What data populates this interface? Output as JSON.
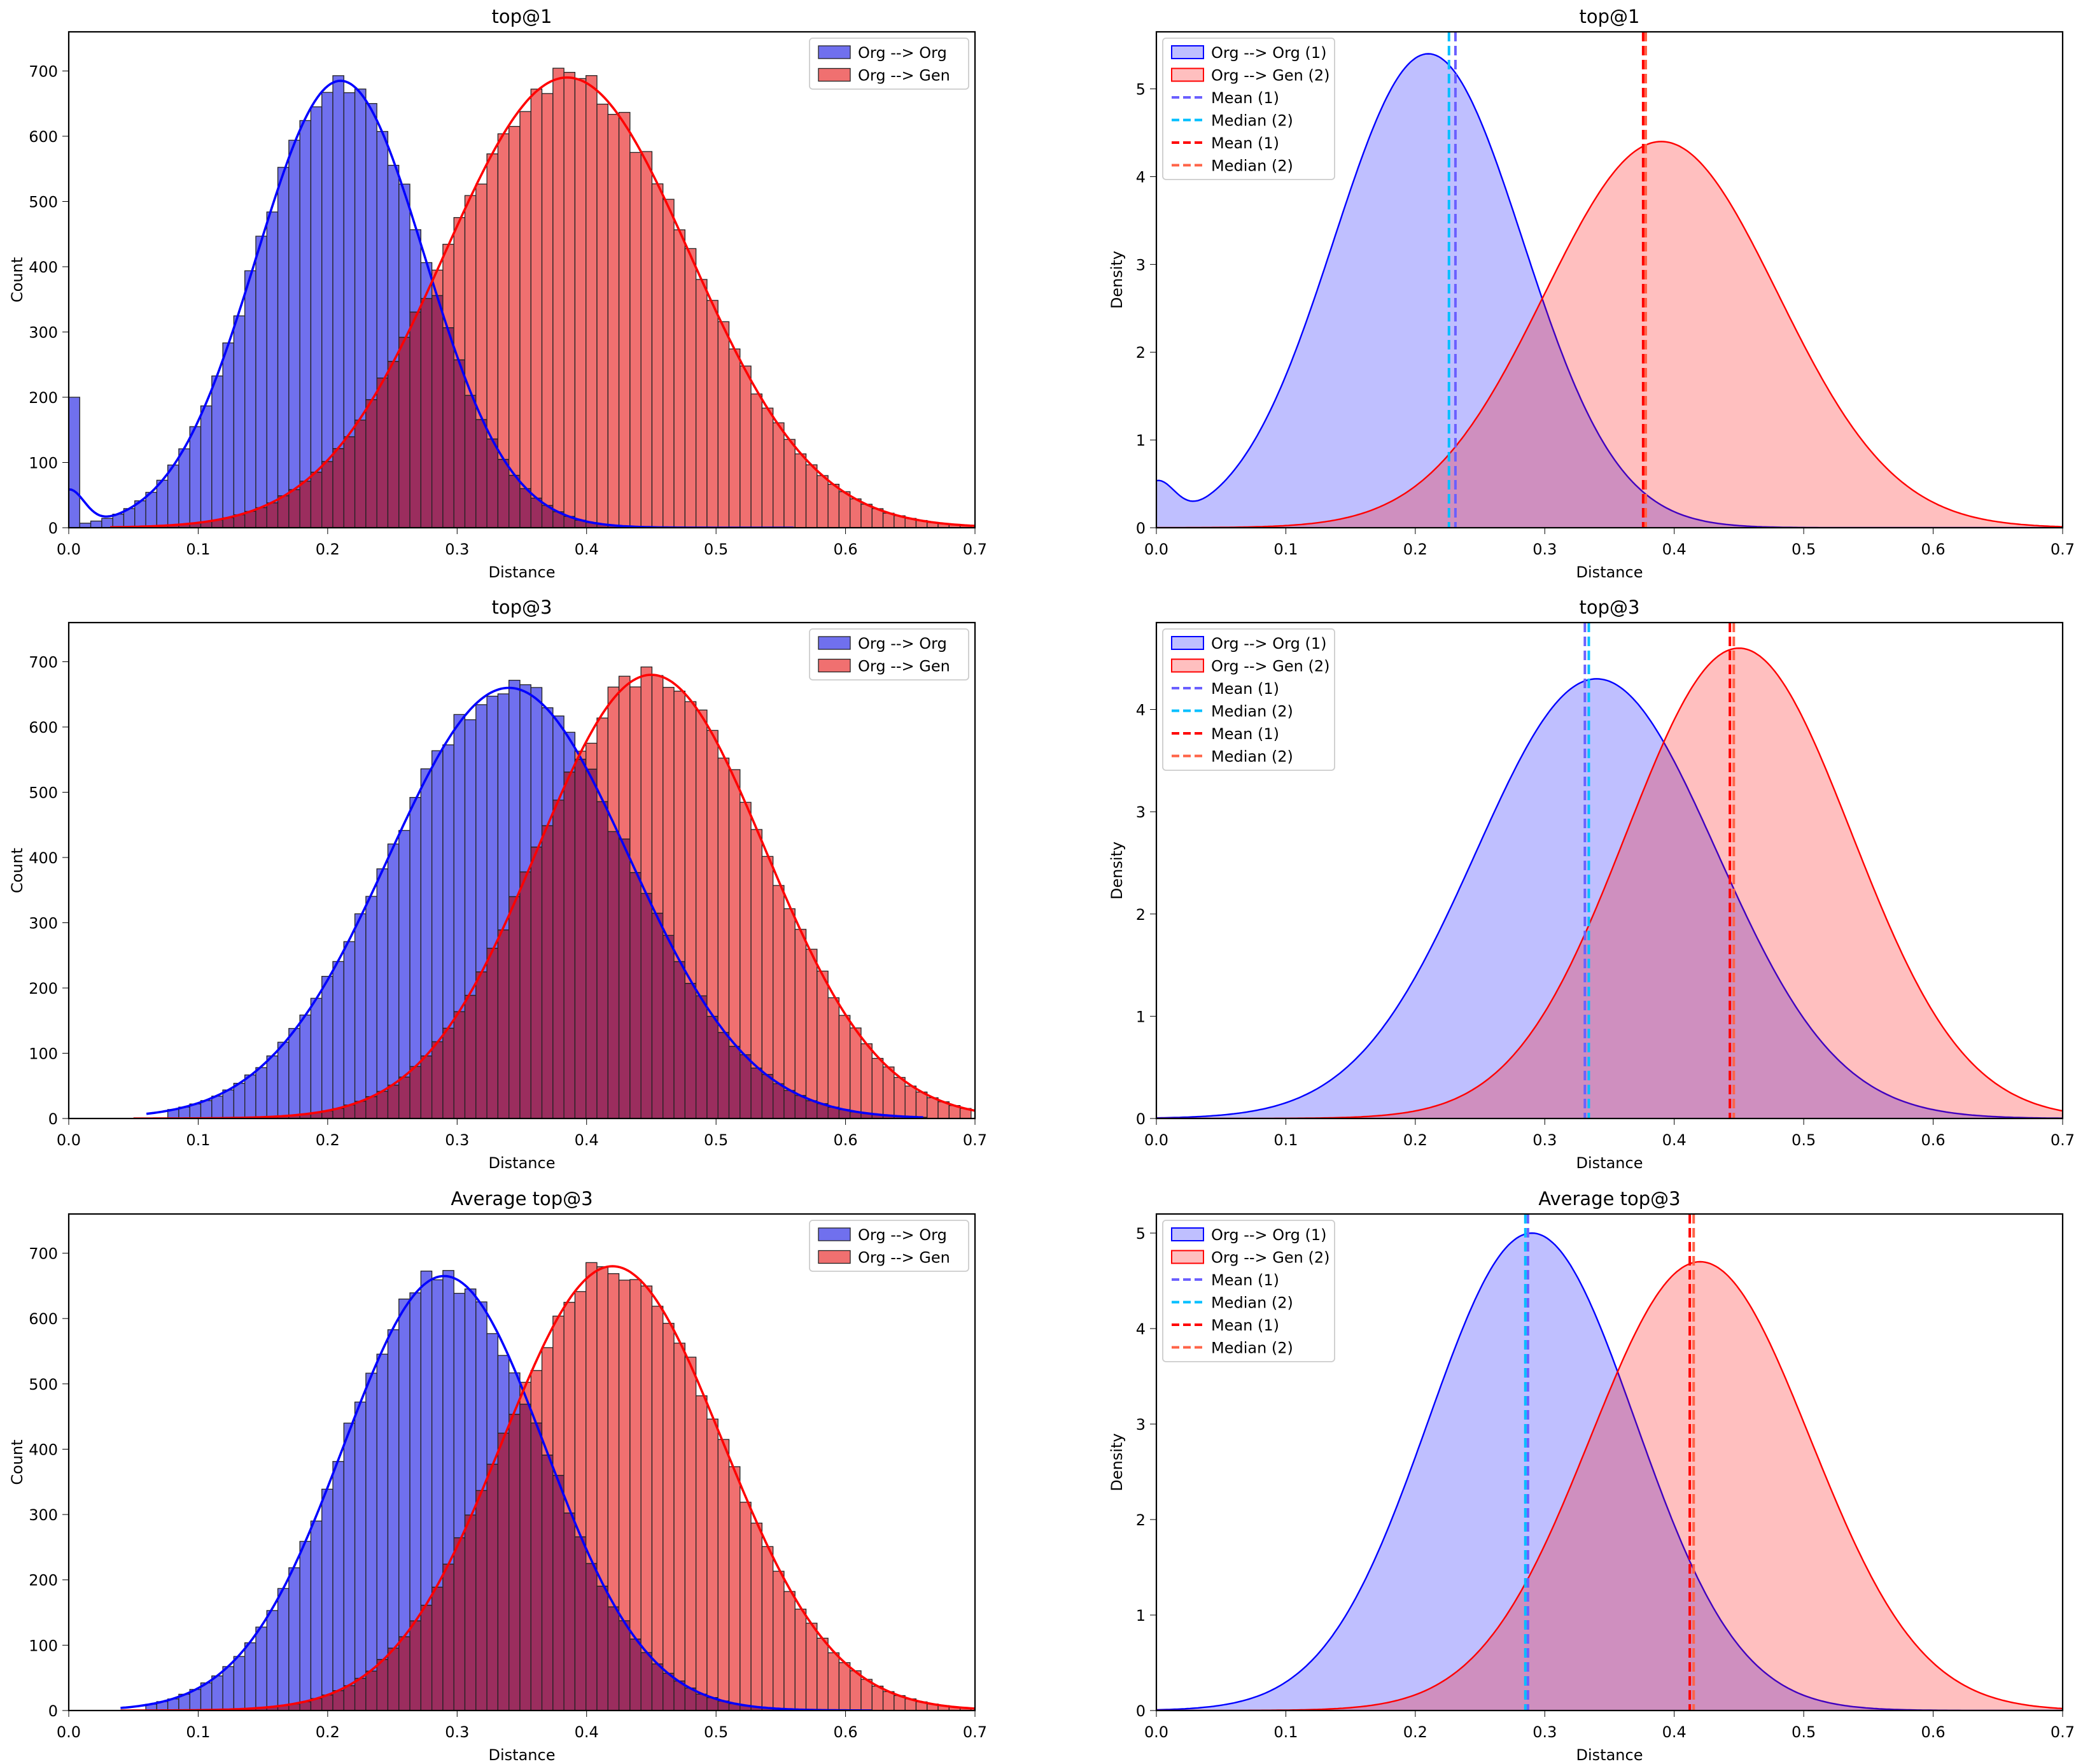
{
  "colors": {
    "blue": "#0000ff",
    "red": "#ff0000",
    "blue_bar": "#7070ee",
    "red_bar": "#f07070",
    "overlap": "#9b2d5e"
  },
  "chart_data": [
    {
      "id": "hist-top1",
      "type": "histogram",
      "title": "top@1",
      "xlabel": "Distance",
      "ylabel": "Count",
      "xlim": [
        0,
        0.7
      ],
      "ylim": [
        0,
        760
      ],
      "xticks": [
        "0.0",
        "0.1",
        "0.2",
        "0.3",
        "0.4",
        "0.5",
        "0.6",
        "0.7"
      ],
      "xtick_values": [
        0,
        0.1,
        0.2,
        0.3,
        0.4,
        0.5,
        0.6,
        0.7
      ],
      "yticks": [
        "0",
        "100",
        "200",
        "300",
        "400",
        "500",
        "600",
        "700"
      ],
      "ytick_values": [
        0,
        100,
        200,
        300,
        400,
        500,
        600,
        700
      ],
      "legend": [
        "Org --> Org",
        "Org --> Gen"
      ],
      "legend_position": "top-right",
      "series": [
        {
          "name": "Org --> Org",
          "color": "#0000ff",
          "mean": 0.21,
          "sd": 0.065,
          "peak": 685,
          "xmin": 0.0,
          "xmax": 0.56,
          "spike": 200
        },
        {
          "name": "Org --> Gen",
          "color": "#ff0000",
          "mean": 0.385,
          "sd": 0.095,
          "peak": 690,
          "xmin": 0.05,
          "xmax": 0.7
        }
      ]
    },
    {
      "id": "kde-top1",
      "type": "area",
      "title": "top@1",
      "xlabel": "Distance",
      "ylabel": "Density",
      "xlim": [
        0,
        0.7
      ],
      "ylim": [
        0,
        5.65
      ],
      "xticks": [
        "0.0",
        "0.1",
        "0.2",
        "0.3",
        "0.4",
        "0.5",
        "0.6",
        "0.7"
      ],
      "xtick_values": [
        0,
        0.1,
        0.2,
        0.3,
        0.4,
        0.5,
        0.6,
        0.7
      ],
      "yticks": [
        "0",
        "1",
        "2",
        "3",
        "4",
        "5"
      ],
      "ytick_values": [
        0,
        1,
        2,
        3,
        4,
        5
      ],
      "legend": [
        "Org --> Org (1)",
        "Org --> Gen (2)",
        "Mean (1)",
        "Median (2)",
        "Mean (1)",
        "Median (2)"
      ],
      "legend_position": "top-left",
      "series": [
        {
          "name": "Org --> Org (1)",
          "color": "#0000ff",
          "mean": 0.21,
          "sd": 0.073,
          "peak": 5.4
        },
        {
          "name": "Org --> Gen (2)",
          "color": "#ff0000",
          "mean": 0.39,
          "sd": 0.09,
          "peak": 4.4
        }
      ],
      "vlines": [
        {
          "label": "Mean (1)",
          "x": 0.231,
          "color": "#6a5fff"
        },
        {
          "label": "Median (2)",
          "x": 0.226,
          "color": "#00bfff"
        },
        {
          "label": "Mean (1)",
          "x": 0.376,
          "color": "#ff0000"
        },
        {
          "label": "Median (2)",
          "x": 0.378,
          "color": "#ff6347"
        }
      ]
    },
    {
      "id": "hist-top3",
      "type": "histogram",
      "title": "top@3",
      "xlabel": "Distance",
      "ylabel": "Count",
      "xlim": [
        0,
        0.7
      ],
      "ylim": [
        0,
        760
      ],
      "xticks": [
        "0.0",
        "0.1",
        "0.2",
        "0.3",
        "0.4",
        "0.5",
        "0.6",
        "0.7"
      ],
      "xtick_values": [
        0,
        0.1,
        0.2,
        0.3,
        0.4,
        0.5,
        0.6,
        0.7
      ],
      "yticks": [
        "0",
        "100",
        "200",
        "300",
        "400",
        "500",
        "600",
        "700"
      ],
      "ytick_values": [
        0,
        100,
        200,
        300,
        400,
        500,
        600,
        700
      ],
      "legend": [
        "Org --> Org",
        "Org --> Gen"
      ],
      "legend_position": "top-right",
      "series": [
        {
          "name": "Org --> Org",
          "color": "#0000ff",
          "mean": 0.34,
          "sd": 0.093,
          "peak": 660,
          "xmin": 0.08,
          "xmax": 0.66
        },
        {
          "name": "Org --> Gen",
          "color": "#ff0000",
          "mean": 0.45,
          "sd": 0.088,
          "peak": 680,
          "xmin": 0.07,
          "xmax": 0.7
        }
      ]
    },
    {
      "id": "kde-top3",
      "type": "area",
      "title": "top@3",
      "xlabel": "Distance",
      "ylabel": "Density",
      "xlim": [
        0,
        0.7
      ],
      "ylim": [
        0,
        4.85
      ],
      "xticks": [
        "0.0",
        "0.1",
        "0.2",
        "0.3",
        "0.4",
        "0.5",
        "0.6",
        "0.7"
      ],
      "xtick_values": [
        0,
        0.1,
        0.2,
        0.3,
        0.4,
        0.5,
        0.6,
        0.7
      ],
      "yticks": [
        "0",
        "1",
        "2",
        "3",
        "4"
      ],
      "ytick_values": [
        0,
        1,
        2,
        3,
        4
      ],
      "legend": [
        "Org --> Org (1)",
        "Org --> Gen (2)",
        "Mean (1)",
        "Median (2)",
        "Mean (1)",
        "Median (2)"
      ],
      "legend_position": "top-left",
      "series": [
        {
          "name": "Org --> Org (1)",
          "color": "#0000ff",
          "mean": 0.34,
          "sd": 0.093,
          "peak": 4.3
        },
        {
          "name": "Org --> Gen (2)",
          "color": "#ff0000",
          "mean": 0.45,
          "sd": 0.087,
          "peak": 4.6
        }
      ],
      "vlines": [
        {
          "label": "Mean (1)",
          "x": 0.331,
          "color": "#6a5fff"
        },
        {
          "label": "Median (2)",
          "x": 0.334,
          "color": "#00bfff"
        },
        {
          "label": "Mean (1)",
          "x": 0.443,
          "color": "#ff0000"
        },
        {
          "label": "Median (2)",
          "x": 0.446,
          "color": "#ff6347"
        }
      ]
    },
    {
      "id": "hist-avg",
      "type": "histogram",
      "title": "Average top@3",
      "xlabel": "Distance",
      "ylabel": "Count",
      "xlim": [
        0,
        0.7
      ],
      "ylim": [
        0,
        760
      ],
      "xticks": [
        "0.0",
        "0.1",
        "0.2",
        "0.3",
        "0.4",
        "0.5",
        "0.6",
        "0.7"
      ],
      "xtick_values": [
        0,
        0.1,
        0.2,
        0.3,
        0.4,
        0.5,
        0.6,
        0.7
      ],
      "yticks": [
        "0",
        "100",
        "200",
        "300",
        "400",
        "500",
        "600",
        "700"
      ],
      "ytick_values": [
        0,
        100,
        200,
        300,
        400,
        500,
        600,
        700
      ],
      "legend": [
        "Org --> Org",
        "Org --> Gen"
      ],
      "legend_position": "top-right",
      "series": [
        {
          "name": "Org --> Org",
          "color": "#0000ff",
          "mean": 0.29,
          "sd": 0.078,
          "peak": 665,
          "xmin": 0.06,
          "xmax": 0.62
        },
        {
          "name": "Org --> Gen",
          "color": "#ff0000",
          "mean": 0.42,
          "sd": 0.085,
          "peak": 680,
          "xmin": 0.06,
          "xmax": 0.7
        }
      ]
    },
    {
      "id": "kde-avg",
      "type": "area",
      "title": "Average top@3",
      "xlabel": "Distance",
      "ylabel": "Density",
      "xlim": [
        0,
        0.7
      ],
      "ylim": [
        0,
        5.2
      ],
      "xticks": [
        "0.0",
        "0.1",
        "0.2",
        "0.3",
        "0.4",
        "0.5",
        "0.6",
        "0.7"
      ],
      "xtick_values": [
        0,
        0.1,
        0.2,
        0.3,
        0.4,
        0.5,
        0.6,
        0.7
      ],
      "yticks": [
        "0",
        "1",
        "2",
        "3",
        "4",
        "5"
      ],
      "ytick_values": [
        0,
        1,
        2,
        3,
        4,
        5
      ],
      "legend": [
        "Org --> Org (1)",
        "Org --> Gen (2)",
        "Mean (1)",
        "Median (2)",
        "Mean (1)",
        "Median (2)"
      ],
      "legend_position": "top-left",
      "series": [
        {
          "name": "Org --> Org (1)",
          "color": "#0000ff",
          "mean": 0.29,
          "sd": 0.08,
          "peak": 5.0
        },
        {
          "name": "Org --> Gen (2)",
          "color": "#ff0000",
          "mean": 0.42,
          "sd": 0.085,
          "peak": 4.7
        }
      ],
      "vlines": [
        {
          "label": "Mean (1)",
          "x": 0.287,
          "color": "#6a5fff"
        },
        {
          "label": "Median (2)",
          "x": 0.285,
          "color": "#00bfff"
        },
        {
          "label": "Mean (1)",
          "x": 0.412,
          "color": "#ff0000"
        },
        {
          "label": "Median (2)",
          "x": 0.415,
          "color": "#ff6347"
        }
      ]
    }
  ]
}
